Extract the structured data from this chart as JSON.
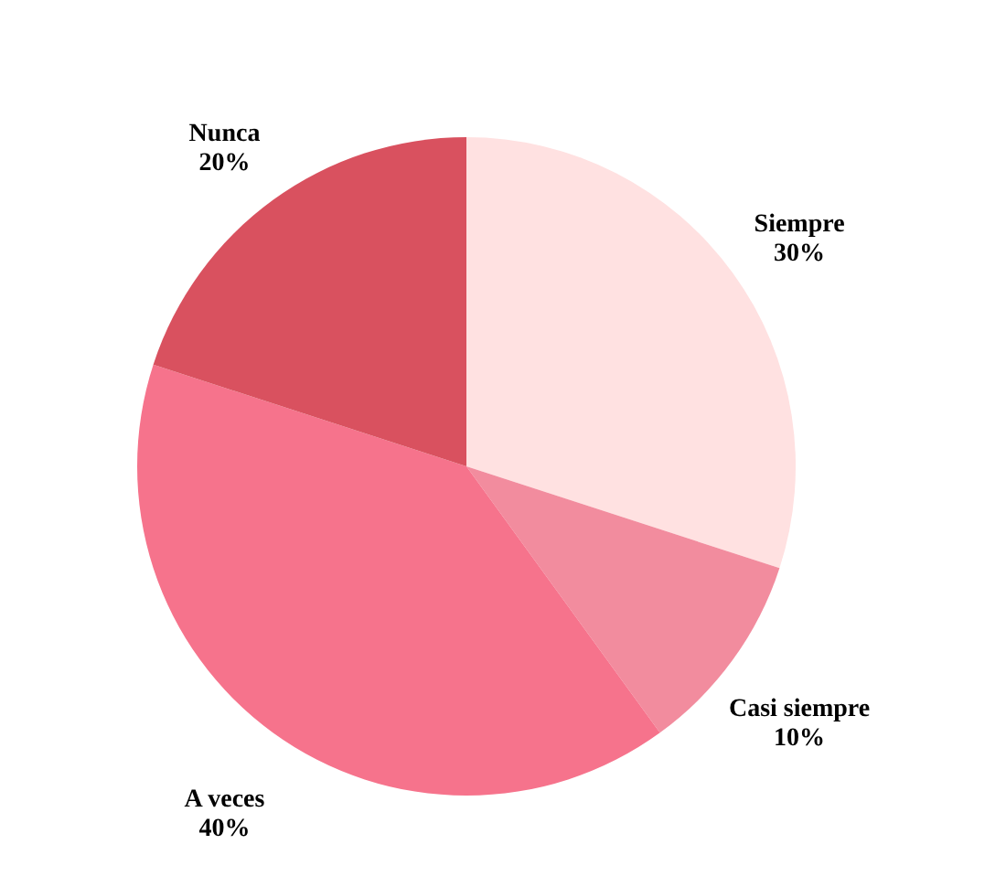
{
  "chart_data": {
    "type": "pie",
    "categories": [
      "Siempre",
      "Casi siempre",
      "A veces",
      "Nunca"
    ],
    "values": [
      30,
      10,
      40,
      20
    ],
    "value_labels": [
      "30%",
      "10%",
      "40%",
      "20%"
    ],
    "colors": [
      "#ffe1e1",
      "#f28c9e",
      "#f6738c",
      "#d9515f"
    ]
  }
}
